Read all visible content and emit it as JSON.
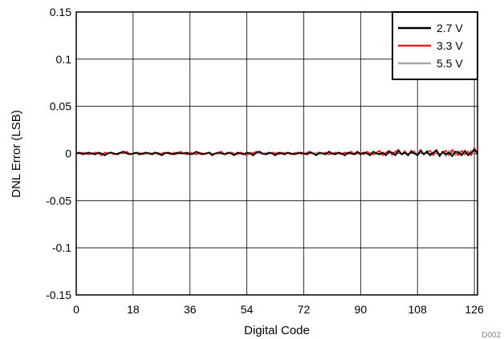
{
  "chart_data": {
    "type": "line",
    "title": "",
    "xlabel": "Digital Code",
    "ylabel": "DNL Error (LSB)",
    "xlim": [
      0,
      127
    ],
    "ylim": [
      -0.15,
      0.15
    ],
    "xticks": [
      0,
      18,
      36,
      54,
      72,
      90,
      108,
      126
    ],
    "yticks": [
      0.15,
      0.1,
      0.05,
      0,
      -0.05,
      -0.1,
      -0.15
    ],
    "ytick_labels": [
      "0.15",
      "0.1",
      "0.05",
      "0",
      "-0.05",
      "-0.1",
      "-0.15"
    ],
    "grid": true,
    "legend_position": "top-right",
    "x": [
      0,
      1,
      2,
      3,
      4,
      5,
      6,
      7,
      8,
      9,
      10,
      11,
      12,
      13,
      14,
      15,
      16,
      17,
      18,
      19,
      20,
      21,
      22,
      23,
      24,
      25,
      26,
      27,
      28,
      29,
      30,
      31,
      32,
      33,
      34,
      35,
      36,
      37,
      38,
      39,
      40,
      41,
      42,
      43,
      44,
      45,
      46,
      47,
      48,
      49,
      50,
      51,
      52,
      53,
      54,
      55,
      56,
      57,
      58,
      59,
      60,
      61,
      62,
      63,
      64,
      65,
      66,
      67,
      68,
      69,
      70,
      71,
      72,
      73,
      74,
      75,
      76,
      77,
      78,
      79,
      80,
      81,
      82,
      83,
      84,
      85,
      86,
      87,
      88,
      89,
      90,
      91,
      92,
      93,
      94,
      95,
      96,
      97,
      98,
      99,
      100,
      101,
      102,
      103,
      104,
      105,
      106,
      107,
      108,
      109,
      110,
      111,
      112,
      113,
      114,
      115,
      116,
      117,
      118,
      119,
      120,
      121,
      122,
      123,
      124,
      125,
      126,
      127
    ],
    "series": [
      {
        "name": "2.7 V",
        "color": "#000000",
        "values": [
          0.0,
          0.001,
          -0.001,
          0.0,
          0.001,
          0.0,
          -0.001,
          0.001,
          0.0,
          -0.002,
          0.0,
          0.001,
          0.0,
          -0.001,
          0.001,
          0.002,
          0.0,
          -0.001,
          0.0,
          0.001,
          -0.001,
          0.0,
          0.001,
          0.0,
          -0.001,
          0.001,
          0.0,
          -0.002,
          0.0,
          0.001,
          0.0,
          -0.001,
          0.001,
          0.0,
          0.0,
          0.001,
          -0.001,
          0.0,
          0.002,
          0.0,
          -0.001,
          0.0,
          0.001,
          -0.002,
          0.0,
          0.001,
          0.0,
          -0.001,
          0.001,
          0.0,
          -0.002,
          0.001,
          0.0,
          -0.001,
          0.001,
          0.0,
          -0.002,
          0.001,
          0.002,
          0.0,
          -0.001,
          0.001,
          0.0,
          -0.002,
          0.001,
          0.0,
          -0.001,
          0.001,
          0.0,
          -0.001,
          0.0,
          0.001,
          0.0,
          -0.001,
          0.001,
          0.0,
          -0.002,
          0.001,
          0.0,
          -0.001,
          0.002,
          0.0,
          -0.001,
          0.001,
          0.0,
          -0.002,
          0.001,
          0.0,
          -0.001,
          0.002,
          -0.001,
          0.001,
          0.0,
          -0.002,
          0.002,
          0.0,
          -0.001,
          0.001,
          -0.002,
          0.002,
          0.001,
          -0.002,
          0.003,
          -0.001,
          0.001,
          -0.002,
          0.002,
          0.0,
          -0.002,
          0.003,
          -0.001,
          0.002,
          -0.002,
          0.001,
          0.003,
          -0.003,
          0.002,
          -0.001,
          0.001,
          -0.003,
          0.002,
          0.001,
          -0.002,
          0.003,
          -0.002,
          0.001,
          0.004,
          0.0
        ]
      },
      {
        "name": "3.3 V",
        "color": "#e8211c",
        "values": [
          0.0,
          0.0,
          0.001,
          0.0,
          -0.001,
          0.0,
          0.001,
          0.0,
          -0.002,
          0.001,
          0.0,
          0.001,
          -0.001,
          0.0,
          0.001,
          0.0,
          0.002,
          -0.001,
          0.0,
          0.001,
          0.0,
          -0.001,
          0.001,
          0.0,
          0.0,
          0.001,
          -0.001,
          0.0,
          0.001,
          0.0,
          -0.001,
          0.001,
          0.0,
          0.002,
          0.0,
          -0.001,
          0.001,
          0.0,
          -0.001,
          0.001,
          0.0,
          0.0,
          0.001,
          -0.001,
          0.0,
          0.001,
          0.002,
          -0.001,
          0.0,
          0.001,
          0.0,
          -0.001,
          0.001,
          0.0,
          -0.002,
          0.001,
          0.0,
          0.002,
          0.001,
          0.0,
          -0.001,
          0.0,
          0.001,
          0.0,
          -0.001,
          0.001,
          0.0,
          0.001,
          -0.001,
          0.0,
          0.001,
          0.0,
          -0.001,
          0.001,
          0.002,
          0.0,
          -0.001,
          0.001,
          0.0,
          0.001,
          -0.001,
          0.0,
          0.001,
          0.0,
          -0.001,
          0.001,
          0.0,
          0.002,
          -0.001,
          0.0,
          0.001,
          -0.001,
          0.002,
          0.0,
          -0.001,
          0.001,
          0.003,
          -0.002,
          0.001,
          0.003,
          -0.001,
          0.002,
          0.004,
          -0.001,
          0.002,
          -0.002,
          0.003,
          0.001,
          -0.002,
          0.004,
          -0.001,
          0.002,
          0.003,
          -0.002,
          0.004,
          -0.002,
          0.001,
          0.003,
          -0.002,
          0.004,
          0.0,
          -0.002,
          0.003,
          -0.001,
          0.002,
          -0.002,
          0.006,
          0.0
        ]
      },
      {
        "name": "5.5 V",
        "color": "#a6a6a6",
        "values": [
          0.0,
          0.0,
          0.0,
          0.001,
          0.0,
          -0.001,
          0.0,
          0.001,
          0.0,
          -0.001,
          0.001,
          0.0,
          0.0,
          -0.001,
          0.001,
          0.0,
          0.001,
          0.0,
          -0.001,
          0.0,
          0.001,
          0.0,
          -0.001,
          0.001,
          0.0,
          0.0,
          0.001,
          -0.001,
          0.0,
          0.001,
          0.0,
          0.0,
          -0.001,
          0.001,
          0.0,
          0.001,
          0.0,
          -0.001,
          0.0,
          0.001,
          0.0,
          -0.001,
          0.001,
          0.0,
          0.0,
          -0.001,
          0.001,
          0.0,
          0.0,
          0.001,
          -0.001,
          0.0,
          0.001,
          0.0,
          -0.001,
          0.0,
          0.001,
          0.0,
          0.0,
          -0.001,
          0.001,
          0.0,
          0.0,
          0.001,
          -0.001,
          0.0,
          0.001,
          0.0,
          -0.001,
          0.001,
          0.0,
          0.0,
          -0.001,
          0.001,
          0.0,
          0.0,
          0.001,
          -0.001,
          0.0,
          0.001,
          0.0,
          -0.001,
          0.001,
          0.0,
          0.0,
          0.001,
          -0.001,
          0.0,
          0.001,
          0.0,
          -0.001,
          0.001,
          0.0,
          0.001,
          -0.001,
          0.0,
          0.002,
          -0.001,
          0.001,
          0.002,
          -0.002,
          0.001,
          0.002,
          -0.001,
          0.003,
          -0.002,
          0.001,
          0.003,
          -0.002,
          0.002,
          -0.001,
          0.003,
          -0.002,
          0.001,
          0.004,
          -0.002,
          0.002,
          -0.003,
          0.003,
          0.001,
          -0.002,
          0.003,
          -0.002,
          0.002,
          -0.001,
          0.003,
          -0.002,
          0.0
        ]
      }
    ]
  },
  "figure_id": "D002"
}
